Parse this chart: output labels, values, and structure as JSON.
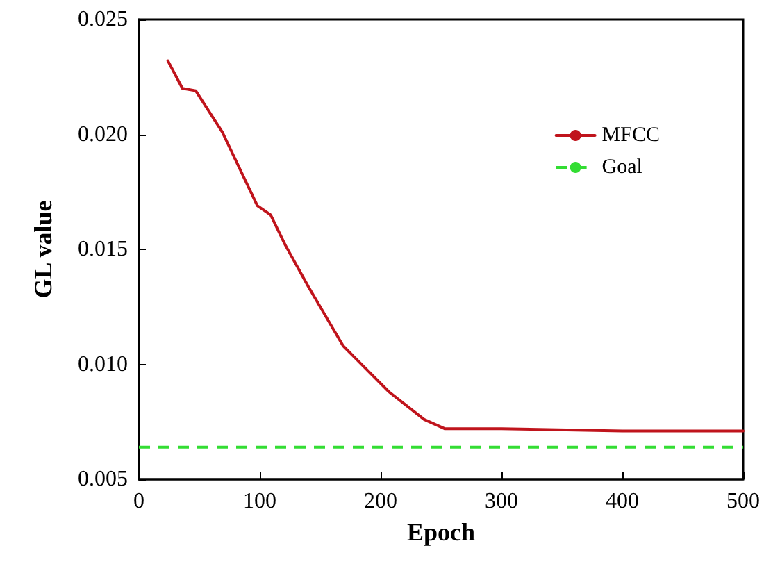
{
  "chart_data": {
    "type": "line",
    "xlabel": "Epoch",
    "ylabel": "GL value",
    "xlim": [
      0,
      500
    ],
    "xticks": [
      0,
      100,
      200,
      300,
      400,
      500
    ],
    "ylim": [
      0.005,
      0.025
    ],
    "yticks": [
      {
        "value": 0.005,
        "label": "0.005"
      },
      {
        "value": 0.01,
        "label": "0.010"
      },
      {
        "value": 0.015,
        "label": "0.015"
      },
      {
        "value": 0.02,
        "label": "0.020"
      },
      {
        "value": 0.025,
        "label": "0.025"
      }
    ],
    "series": [
      {
        "name": "MFCC",
        "color": "#c0141c",
        "x": [
          24,
          36,
          47,
          69,
          98,
          109,
          121,
          140,
          169,
          207,
          236,
          253,
          300,
          400,
          500
        ],
        "values": [
          0.0232,
          0.022,
          0.0219,
          0.0201,
          0.0169,
          0.0165,
          0.0152,
          0.0134,
          0.0108,
          0.0088,
          0.0076,
          0.0072,
          0.0072,
          0.0071,
          0.0071
        ]
      }
    ],
    "ref_lines": [
      {
        "axis": "y",
        "value": 0.0064,
        "label": "Goal",
        "color": "#33dd33",
        "line_style": "dashed"
      }
    ],
    "legend": "top right",
    "grid": false,
    "marker": "none",
    "line_style": "solid"
  }
}
